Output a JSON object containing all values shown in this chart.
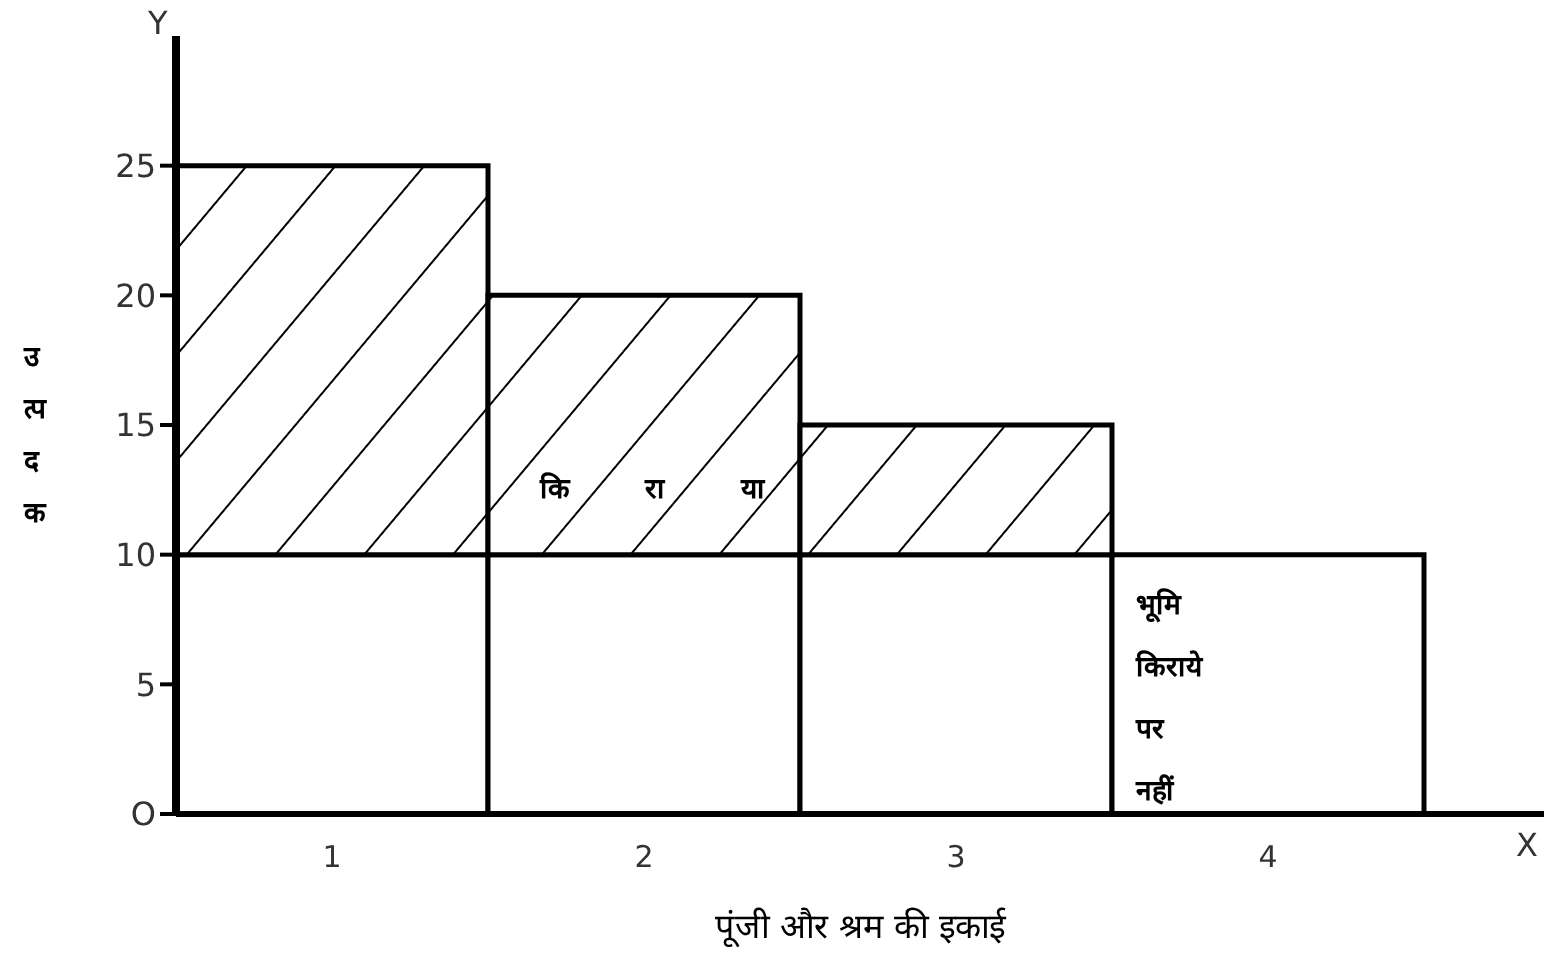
{
  "chart_data": {
    "type": "bar",
    "stacked": true,
    "categories": [
      "1",
      "2",
      "3",
      "4"
    ],
    "series": [
      {
        "color": "#ffffff",
        "values": [
          10,
          10,
          10,
          10
        ]
      },
      {
        "color": "#000000",
        "values": [
          15,
          10,
          5,
          0
        ]
      }
    ],
    "ylim": [
      0,
      30
    ],
    "yticks": [
      {
        "value": 0,
        "label": "O"
      },
      5,
      10,
      15,
      20,
      25
    ],
    "ylabel": "उ त्प द क",
    "xlabel": "पूंजी और श्रम की इकाई",
    "grid": false,
    "legend": false,
    "annotations": [
      "Y",
      "X",
      "कि  रा  या",
      "भूमि किराये पर नहीं"
    ]
  }
}
